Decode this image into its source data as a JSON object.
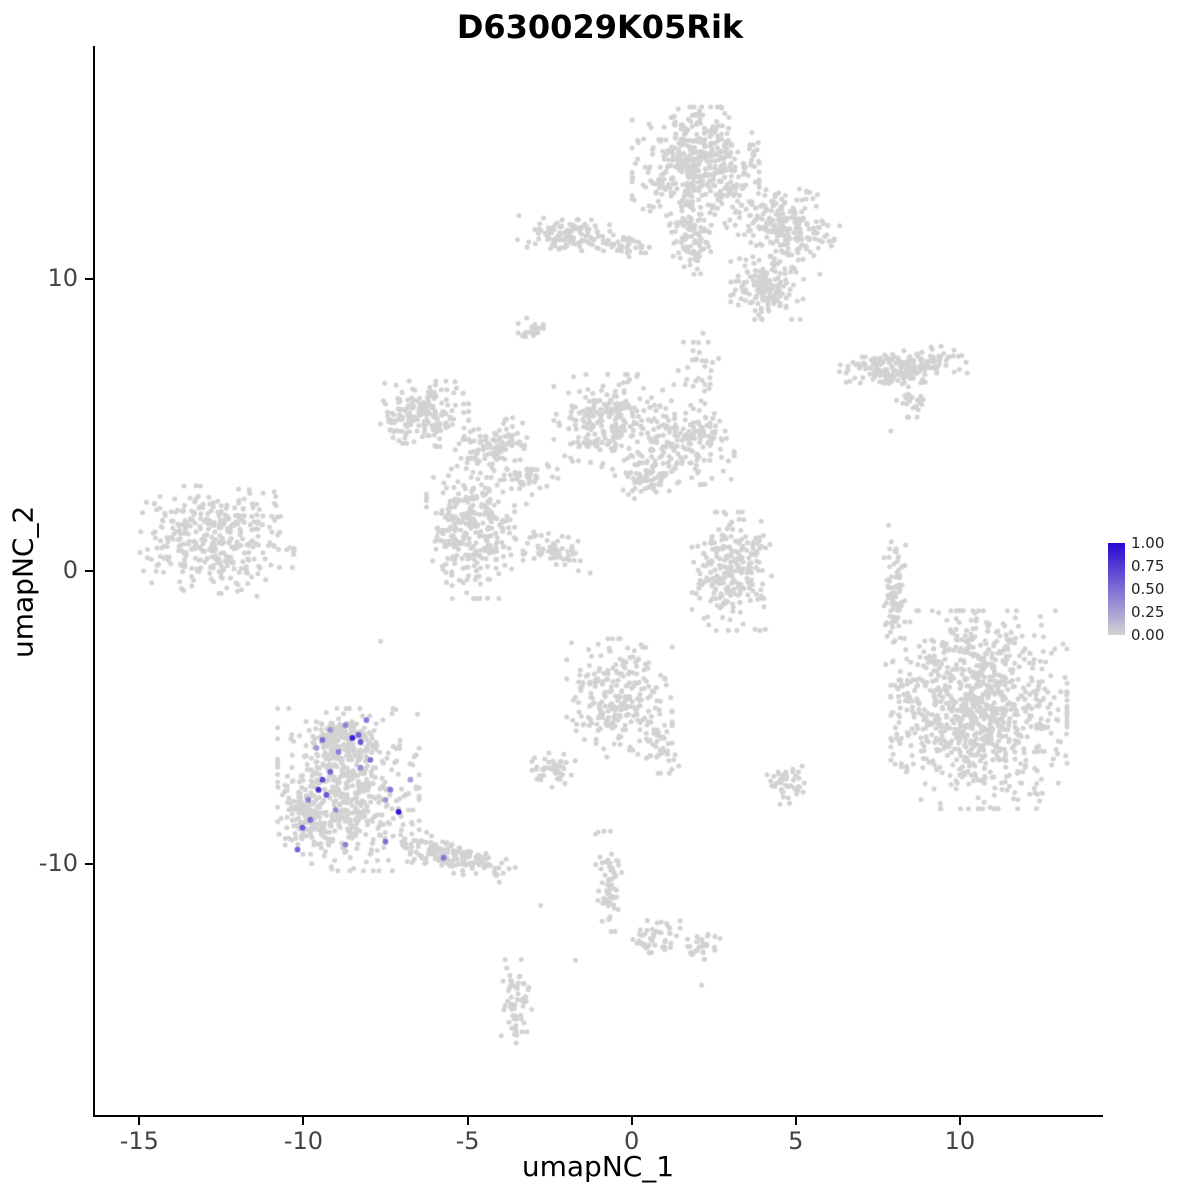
{
  "chart_data": {
    "type": "scatter",
    "title": "D630029K05Rik",
    "xlabel": "umapNC_1",
    "ylabel": "umapNC_2",
    "xlim": [
      -16.35,
      14.3
    ],
    "ylim": [
      -18.6,
      17.9
    ],
    "x_ticks": [
      -15,
      -10,
      -5,
      0,
      5,
      10
    ],
    "y_ticks": [
      -10,
      0,
      10
    ],
    "grid": false,
    "legend": {
      "position": "right",
      "tick_labels": [
        "1.00",
        "0.75",
        "0.50",
        "0.25",
        "0.00"
      ],
      "low_color": "#d3d3d3",
      "high_color": "#2808d4"
    },
    "base_point_color": "#d2d2d2",
    "axis_color": "#000000",
    "tick_label_color": "#444444",
    "description": "UMAP feature plot; grey cells summarized as gaussian clusters, expressing cells listed individually",
    "clusters_columns": [
      "center_x",
      "center_y",
      "sigma_x",
      "sigma_y",
      "n_points",
      "rotation_deg"
    ],
    "clusters": [
      [
        1.95,
        13.86,
        0.88,
        0.92,
        480,
        0
      ],
      [
        4.6,
        11.74,
        0.73,
        0.65,
        240,
        -20
      ],
      [
        4.12,
        9.69,
        0.5,
        0.49,
        150,
        0
      ],
      [
        1.8,
        11.37,
        0.3,
        0.58,
        90,
        0
      ],
      [
        -2.1,
        11.54,
        0.64,
        0.31,
        120,
        -8
      ],
      [
        -0.18,
        11.13,
        0.37,
        0.17,
        35,
        0
      ],
      [
        -2.93,
        8.22,
        0.24,
        0.2,
        22,
        0
      ],
      [
        8.26,
        7.0,
        0.88,
        0.27,
        210,
        5
      ],
      [
        8.6,
        5.8,
        0.24,
        0.24,
        25,
        0
      ],
      [
        -6.31,
        5.39,
        0.61,
        0.51,
        200,
        0
      ],
      [
        -4.3,
        4.3,
        0.52,
        0.34,
        100,
        15
      ],
      [
        -0.7,
        5.15,
        0.76,
        0.72,
        240,
        0
      ],
      [
        1.65,
        4.4,
        0.67,
        0.65,
        170,
        0
      ],
      [
        -4.91,
        1.47,
        0.61,
        1.09,
        310,
        0
      ],
      [
        -2.53,
        0.75,
        0.64,
        0.24,
        60,
        -12
      ],
      [
        -3.17,
        3.31,
        0.37,
        0.34,
        50,
        40
      ],
      [
        0.43,
        3.17,
        0.46,
        0.31,
        65,
        0
      ],
      [
        2.1,
        6.93,
        0.37,
        0.55,
        30,
        0
      ],
      [
        -12.62,
        1.06,
        1.07,
        0.82,
        360,
        -5
      ],
      [
        3.05,
        0.0,
        0.55,
        0.92,
        240,
        0
      ],
      [
        8.02,
        -0.58,
        0.15,
        0.85,
        80,
        0
      ],
      [
        10.58,
        -4.74,
        1.22,
        1.54,
        900,
        0
      ],
      [
        8.38,
        -4.33,
        0.37,
        1.02,
        50,
        0
      ],
      [
        -0.37,
        -4.33,
        0.73,
        0.92,
        260,
        0
      ],
      [
        0.91,
        -6.01,
        0.27,
        0.41,
        30,
        0
      ],
      [
        -2.38,
        -6.83,
        0.3,
        0.31,
        50,
        0
      ],
      [
        -8.63,
        -7.47,
        0.98,
        1.26,
        540,
        0
      ],
      [
        -8.84,
        -5.63,
        0.49,
        0.31,
        110,
        0
      ],
      [
        -5.46,
        -9.76,
        0.88,
        0.27,
        160,
        -18
      ],
      [
        -9.91,
        -8.4,
        0.27,
        0.58,
        90,
        0
      ],
      [
        4.73,
        -7.34,
        0.3,
        0.31,
        45,
        0
      ],
      [
        -0.7,
        -10.61,
        0.18,
        0.78,
        65,
        0
      ],
      [
        0.73,
        -12.46,
        0.34,
        0.27,
        45,
        0
      ],
      [
        2.1,
        -12.83,
        0.27,
        0.2,
        30,
        0
      ],
      [
        -3.51,
        -14.71,
        0.21,
        0.65,
        60,
        0
      ]
    ],
    "scattered_points": [
      [
        7.83,
        1.57
      ],
      [
        -7.65,
        -2.39
      ],
      [
        -2.77,
        -11.43
      ],
      [
        -1.71,
        -13.31
      ],
      [
        2.13,
        -14.16
      ],
      [
        7.9,
        4.8
      ]
    ],
    "expression_points_columns": [
      "x",
      "y",
      "expression"
    ],
    "expression_points": [
      [
        -8.08,
        -5.09,
        0.45
      ],
      [
        -8.72,
        -5.26,
        0.4
      ],
      [
        -9.18,
        -5.43,
        0.3
      ],
      [
        -8.51,
        -5.7,
        0.9
      ],
      [
        -8.26,
        -5.84,
        0.6
      ],
      [
        -9.42,
        -5.77,
        0.5
      ],
      [
        -9.6,
        -6.04,
        0.3
      ],
      [
        -8.93,
        -6.18,
        0.4
      ],
      [
        -7.96,
        -6.45,
        0.5
      ],
      [
        -8.26,
        -6.72,
        0.35
      ],
      [
        -9.18,
        -6.86,
        0.55
      ],
      [
        -9.42,
        -7.13,
        0.7
      ],
      [
        -9.54,
        -7.47,
        0.8
      ],
      [
        -9.3,
        -7.65,
        0.6
      ],
      [
        -9.85,
        -7.82,
        0.4
      ],
      [
        -7.35,
        -7.47,
        0.45
      ],
      [
        -7.5,
        -7.82,
        0.3
      ],
      [
        -7.1,
        -8.23,
        0.95
      ],
      [
        -9.79,
        -8.5,
        0.5
      ],
      [
        -10.03,
        -8.77,
        0.6
      ],
      [
        -8.72,
        -9.35,
        0.4
      ],
      [
        -7.5,
        -9.25,
        0.5
      ],
      [
        -10.18,
        -9.52,
        0.55
      ],
      [
        -5.73,
        -9.8,
        0.45
      ],
      [
        -8.32,
        -5.6,
        0.55
      ],
      [
        -6.74,
        -7.13,
        0.25
      ],
      [
        -9.02,
        -8.16,
        0.35
      ]
    ]
  }
}
